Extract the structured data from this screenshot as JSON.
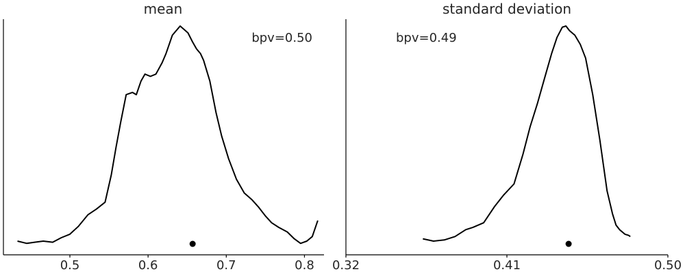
{
  "chart_data": [
    {
      "type": "line",
      "title": "mean",
      "annotation": "bpv=0.50",
      "annotation_anchor": "top-right",
      "xlim": [
        0.415,
        0.825
      ],
      "ylim": [
        0,
        1.03
      ],
      "xticks": [
        0.5,
        0.6,
        0.7,
        0.8
      ],
      "xtick_labels": [
        "0.5",
        "0.6",
        "0.7",
        "0.8"
      ],
      "grid": false,
      "point_estimate": 0.657,
      "series": [
        {
          "x": [
            0.433,
            0.445,
            0.455,
            0.466,
            0.478,
            0.489,
            0.5,
            0.511,
            0.523,
            0.534,
            0.545,
            0.553,
            0.559,
            0.565,
            0.572,
            0.58,
            0.585,
            0.591,
            0.596,
            0.603,
            0.61,
            0.618,
            0.623,
            0.631,
            0.641,
            0.651,
            0.657,
            0.662,
            0.667,
            0.671,
            0.679,
            0.687,
            0.694,
            0.703,
            0.713,
            0.723,
            0.733,
            0.741,
            0.75,
            0.758,
            0.767,
            0.778,
            0.787,
            0.795,
            0.803,
            0.81,
            0.817
          ],
          "y": [
            0.06,
            0.05,
            0.055,
            0.06,
            0.055,
            0.075,
            0.09,
            0.125,
            0.175,
            0.2,
            0.23,
            0.35,
            0.47,
            0.58,
            0.7,
            0.71,
            0.7,
            0.76,
            0.79,
            0.78,
            0.79,
            0.84,
            0.88,
            0.96,
            1.0,
            0.97,
            0.93,
            0.9,
            0.88,
            0.85,
            0.76,
            0.62,
            0.52,
            0.42,
            0.33,
            0.27,
            0.24,
            0.21,
            0.17,
            0.14,
            0.12,
            0.1,
            0.07,
            0.05,
            0.06,
            0.08,
            0.15
          ]
        }
      ]
    },
    {
      "type": "line",
      "title": "standard deviation",
      "annotation": "bpv=0.49",
      "annotation_anchor": "top-left",
      "xlim": [
        0.32,
        0.5
      ],
      "ylim": [
        0,
        1.03
      ],
      "xticks": [
        0.32,
        0.41,
        0.5
      ],
      "xtick_labels": [
        "0.32",
        "0.41",
        "0.50"
      ],
      "grid": false,
      "point_estimate": 0.4445,
      "series": [
        {
          "x": [
            0.363,
            0.369,
            0.375,
            0.381,
            0.387,
            0.391,
            0.397,
            0.403,
            0.408,
            0.414,
            0.419,
            0.423,
            0.427,
            0.431,
            0.435,
            0.438,
            0.441,
            0.443,
            0.445,
            0.448,
            0.451,
            0.454,
            0.458,
            0.462,
            0.466,
            0.469,
            0.471,
            0.473,
            0.476,
            0.478,
            0.479
          ],
          "y": [
            0.07,
            0.06,
            0.065,
            0.08,
            0.11,
            0.12,
            0.14,
            0.21,
            0.26,
            0.31,
            0.44,
            0.56,
            0.66,
            0.77,
            0.88,
            0.95,
            0.995,
            1.0,
            0.98,
            0.96,
            0.92,
            0.86,
            0.7,
            0.5,
            0.28,
            0.18,
            0.13,
            0.11,
            0.09,
            0.085,
            0.08
          ]
        }
      ]
    }
  ]
}
